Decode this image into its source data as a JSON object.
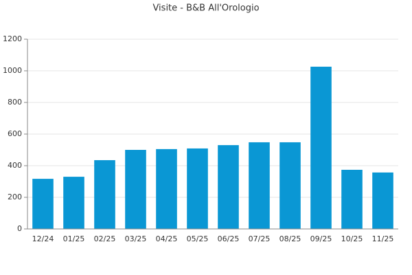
{
  "chart_data": {
    "type": "bar",
    "title": "Visite - B&B All'Orologio",
    "categories": [
      "12/24",
      "01/25",
      "02/25",
      "03/25",
      "04/25",
      "05/25",
      "06/25",
      "07/25",
      "08/25",
      "09/25",
      "10/25",
      "11/25"
    ],
    "values": [
      317,
      330,
      435,
      500,
      505,
      509,
      530,
      548,
      548,
      1026,
      374,
      357
    ],
    "color": "#0a97d4",
    "ylim": [
      0,
      1200
    ],
    "yticks": [
      0,
      200,
      400,
      600,
      800,
      1000,
      1200
    ],
    "grid": true
  }
}
